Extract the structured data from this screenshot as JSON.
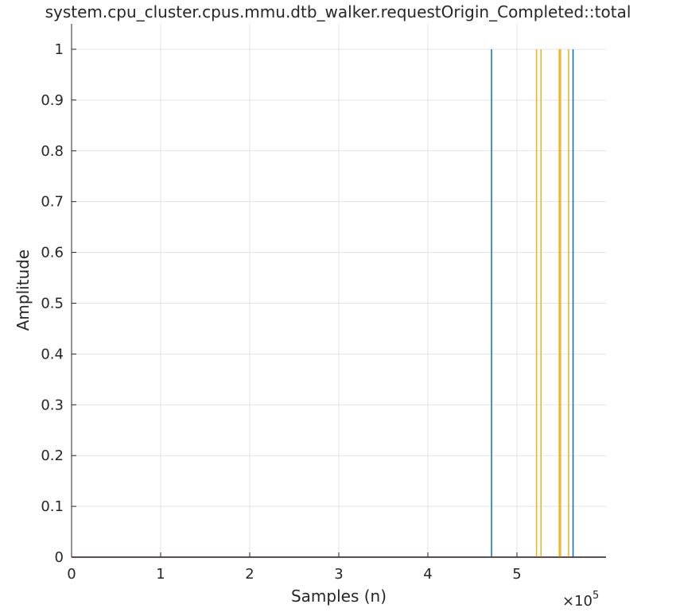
{
  "chart_data": {
    "type": "line",
    "title": "system.cpu_cluster.cpus.mmu.dtb_walker.requestOrigin_Completed::total",
    "xlabel": "Samples (n)",
    "ylabel": "Amplitude",
    "x_exponent_label": "×10",
    "x_exponent_power": "5",
    "xlim": [
      0,
      6.0
    ],
    "ylim": [
      0,
      1.05
    ],
    "x_ticks": [
      0,
      1,
      2,
      3,
      4,
      5
    ],
    "x_tick_labels": [
      "0",
      "1",
      "2",
      "3",
      "4",
      "5"
    ],
    "y_ticks": [
      0,
      0.1,
      0.2,
      0.3,
      0.4,
      0.5,
      0.6,
      0.7,
      0.8,
      0.9,
      1
    ],
    "y_tick_labels": [
      "0",
      "0.1",
      "0.2",
      "0.3",
      "0.4",
      "0.5",
      "0.6",
      "0.7",
      "0.8",
      "0.9",
      "1"
    ],
    "grid": true,
    "series": [
      {
        "color": "#0072BD",
        "spikes": [
          {
            "x": 4.715,
            "y": 1
          },
          {
            "x": 5.63,
            "y": 1
          }
        ]
      },
      {
        "color": "#EDB120",
        "spikes": [
          {
            "x": 5.22,
            "y": 1
          },
          {
            "x": 5.27,
            "y": 1
          },
          {
            "x": 5.475,
            "y": 1
          },
          {
            "x": 5.49,
            "y": 1
          },
          {
            "x": 5.58,
            "y": 1
          }
        ]
      },
      {
        "color": "#7E2F8E",
        "spikes": []
      }
    ]
  }
}
